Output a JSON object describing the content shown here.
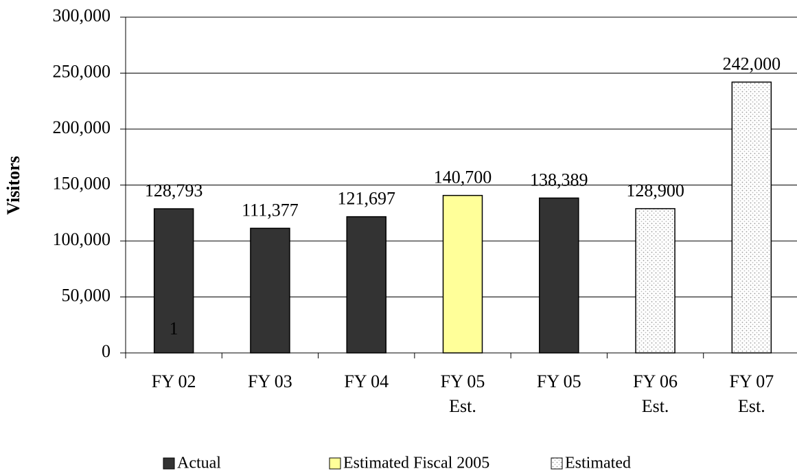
{
  "chart_data": {
    "type": "bar",
    "y_label": "Visitors",
    "categories": [
      "FY 02",
      "FY 03",
      "FY 04",
      "FY 05\nEst.",
      "FY 05",
      "FY 06\nEst.",
      "FY 07\nEst."
    ],
    "series": [
      {
        "name": "Actual",
        "color": "#333333",
        "values": [
          128793,
          111377,
          121697,
          null,
          138389,
          null,
          null
        ],
        "value_labels": [
          "128,793",
          "111,377",
          "121,697",
          null,
          "138,389",
          null,
          null
        ]
      },
      {
        "name": "Estimated Fiscal 2005",
        "color": "#ffff99",
        "values": [
          null,
          null,
          null,
          140700,
          null,
          null,
          null
        ],
        "value_labels": [
          null,
          null,
          null,
          "140,700",
          null,
          null,
          null
        ]
      },
      {
        "name": "Estimated",
        "color": "#ffffff",
        "pattern": "dots",
        "values": [
          null,
          null,
          null,
          null,
          null,
          128900,
          242000
        ],
        "value_labels": [
          null,
          null,
          null,
          null,
          null,
          "128,900",
          "242,000"
        ]
      }
    ],
    "annotation": "1",
    "ylim": [
      0,
      300000
    ],
    "yticks": [
      0,
      {
        "value": 50000,
        "label": "50,000"
      },
      {
        "value": 100000,
        "label": "100,000"
      },
      {
        "value": 150000,
        "label": "150,000"
      },
      {
        "value": 200000,
        "label": "200,000"
      },
      {
        "value": 250000,
        "label": "250,000"
      },
      {
        "value": 300000,
        "label": "300,000"
      }
    ],
    "grid": true
  }
}
